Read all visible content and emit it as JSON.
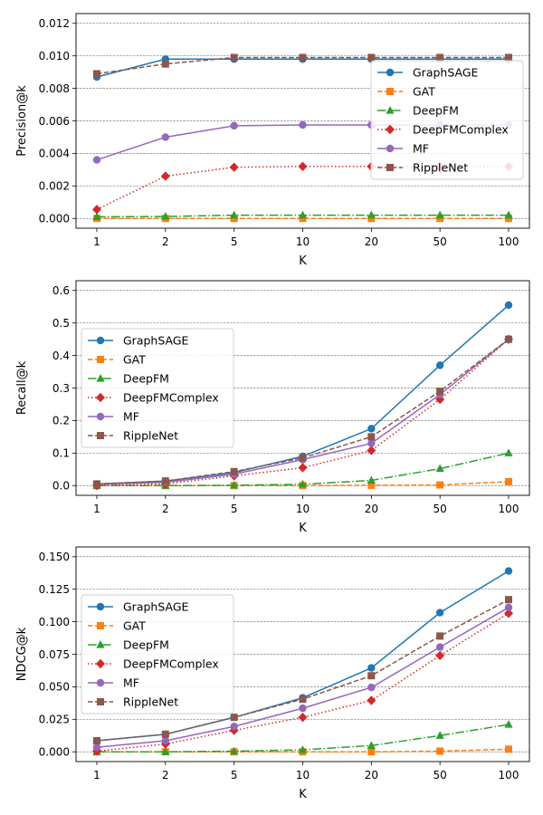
{
  "chart_data": [
    {
      "type": "line",
      "xlabel": "K",
      "ylabel": "Precision@k",
      "categories": [
        "1",
        "2",
        "5",
        "10",
        "20",
        "50",
        "100"
      ],
      "ylim": [
        -0.0006,
        0.0126
      ],
      "yticks": [
        "0.000",
        "0.002",
        "0.004",
        "0.006",
        "0.008",
        "0.010",
        "0.012"
      ],
      "grid": "horizontal dashed",
      "legend_position": "right",
      "series": [
        {
          "name": "GraphSAGE",
          "values": [
            0.0087,
            0.0098,
            0.0098,
            0.0098,
            0.0098,
            0.0098,
            0.0098
          ]
        },
        {
          "name": "GAT",
          "values": [
            0.0,
            0.0,
            0.0,
            0.0,
            0.0,
            0.0,
            0.0
          ]
        },
        {
          "name": "DeepFM",
          "values": [
            0.0001,
            0.00012,
            0.0002,
            0.0002,
            0.0002,
            0.0002,
            0.0002
          ]
        },
        {
          "name": "DeepFMComplex",
          "values": [
            0.00055,
            0.0026,
            0.00315,
            0.0032,
            0.0032,
            0.0032,
            0.0032
          ]
        },
        {
          "name": "MF",
          "values": [
            0.0036,
            0.005,
            0.0057,
            0.00575,
            0.00575,
            0.00575,
            0.00575
          ]
        },
        {
          "name": "RippleNet",
          "values": [
            0.0089,
            0.0095,
            0.0099,
            0.0099,
            0.0099,
            0.0099,
            0.0099
          ]
        }
      ]
    },
    {
      "type": "line",
      "xlabel": "K",
      "ylabel": "Recall@k",
      "categories": [
        "1",
        "2",
        "5",
        "10",
        "20",
        "50",
        "100"
      ],
      "ylim": [
        -0.03,
        0.63
      ],
      "yticks": [
        "0.0",
        "0.1",
        "0.2",
        "0.3",
        "0.4",
        "0.5",
        "0.6"
      ],
      "grid": "horizontal dashed",
      "legend_position": "upper left",
      "series": [
        {
          "name": "GraphSAGE",
          "values": [
            0.005,
            0.014,
            0.04,
            0.09,
            0.175,
            0.37,
            0.555
          ]
        },
        {
          "name": "GAT",
          "values": [
            0.0,
            0.0,
            0.0,
            0.0,
            0.001,
            0.002,
            0.012
          ]
        },
        {
          "name": "DeepFM",
          "values": [
            0.0,
            0.0,
            0.001,
            0.004,
            0.016,
            0.052,
            0.1
          ]
        },
        {
          "name": "DeepFMComplex",
          "values": [
            0.0,
            0.005,
            0.03,
            0.055,
            0.108,
            0.265,
            0.45
          ]
        },
        {
          "name": "MF",
          "values": [
            0.004,
            0.01,
            0.035,
            0.08,
            0.13,
            0.28,
            0.45
          ]
        },
        {
          "name": "RippleNet",
          "values": [
            0.005,
            0.014,
            0.043,
            0.085,
            0.15,
            0.29,
            0.45
          ]
        }
      ]
    },
    {
      "type": "line",
      "xlabel": "K",
      "ylabel": "NDCG@k",
      "categories": [
        "1",
        "2",
        "5",
        "10",
        "20",
        "50",
        "100"
      ],
      "ylim": [
        -0.0075,
        0.1575
      ],
      "yticks": [
        "0.000",
        "0.025",
        "0.050",
        "0.075",
        "0.100",
        "0.125",
        "0.150"
      ],
      "grid": "horizontal dashed",
      "legend_position": "upper left",
      "series": [
        {
          "name": "GraphSAGE",
          "values": [
            0.0085,
            0.0135,
            0.0265,
            0.0415,
            0.0645,
            0.107,
            0.139
          ]
        },
        {
          "name": "GAT",
          "values": [
            0.0,
            0.0,
            0.0,
            0.0,
            0.0,
            0.0005,
            0.002
          ]
        },
        {
          "name": "DeepFM",
          "values": [
            0.0,
            0.0,
            0.0005,
            0.0015,
            0.0048,
            0.0125,
            0.021
          ]
        },
        {
          "name": "DeepFMComplex",
          "values": [
            0.0005,
            0.006,
            0.0165,
            0.0265,
            0.0395,
            0.074,
            0.1065
          ]
        },
        {
          "name": "MF",
          "values": [
            0.0035,
            0.0085,
            0.0195,
            0.0335,
            0.0495,
            0.0805,
            0.111
          ]
        },
        {
          "name": "RippleNet",
          "values": [
            0.0085,
            0.0135,
            0.0265,
            0.0405,
            0.0585,
            0.089,
            0.117
          ]
        }
      ]
    }
  ],
  "series_styles": [
    {
      "name": "GraphSAGE",
      "color": "#1f77b4",
      "dash": "solid",
      "marker": "circle"
    },
    {
      "name": "GAT",
      "color": "#ff7f0e",
      "dash": "dashed",
      "marker": "square"
    },
    {
      "name": "DeepFM",
      "color": "#2ca02c",
      "dash": "dashdot",
      "marker": "triangle"
    },
    {
      "name": "DeepFMComplex",
      "color": "#d62728",
      "dash": "dotted",
      "marker": "diamond"
    },
    {
      "name": "MF",
      "color": "#9467bd",
      "dash": "solid",
      "marker": "circle"
    },
    {
      "name": "RippleNet",
      "color": "#8c564b",
      "dash": "dashed",
      "marker": "square"
    }
  ]
}
